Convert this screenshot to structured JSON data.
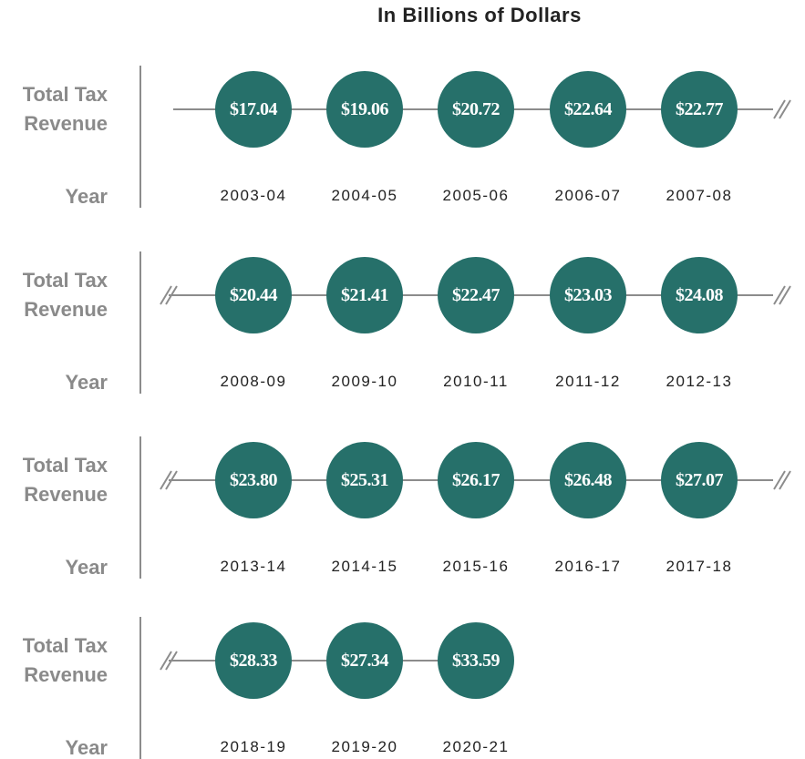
{
  "title": "In Billions of Dollars",
  "rows": [
    {
      "value_heading": "Total Tax Revenue",
      "year_heading": "Year",
      "items": [
        {
          "value": "$17.04",
          "year": "2003-04"
        },
        {
          "value": "$19.06",
          "year": "2004-05"
        },
        {
          "value": "$20.72",
          "year": "2005-06"
        },
        {
          "value": "$22.64",
          "year": "2006-07"
        },
        {
          "value": "$22.77",
          "year": "2007-08"
        }
      ]
    },
    {
      "value_heading": "Total Tax Revenue",
      "year_heading": "Year",
      "items": [
        {
          "value": "$20.44",
          "year": "2008-09"
        },
        {
          "value": "$21.41",
          "year": "2009-10"
        },
        {
          "value": "$22.47",
          "year": "2010-11"
        },
        {
          "value": "$23.03",
          "year": "2011-12"
        },
        {
          "value": "$24.08",
          "year": "2012-13"
        }
      ]
    },
    {
      "value_heading": "Total Tax Revenue",
      "year_heading": "Year",
      "items": [
        {
          "value": "$23.80",
          "year": "2013-14"
        },
        {
          "value": "$25.31",
          "year": "2014-15"
        },
        {
          "value": "$26.17",
          "year": "2015-16"
        },
        {
          "value": "$26.48",
          "year": "2016-17"
        },
        {
          "value": "$27.07",
          "year": "2017-18"
        }
      ]
    },
    {
      "value_heading": "Total Tax Revenue",
      "year_heading": "Year",
      "items": [
        {
          "value": "$28.33",
          "year": "2018-19"
        },
        {
          "value": "$27.34",
          "year": "2019-20"
        },
        {
          "value": "$33.59",
          "year": "2020-21"
        }
      ]
    }
  ]
}
